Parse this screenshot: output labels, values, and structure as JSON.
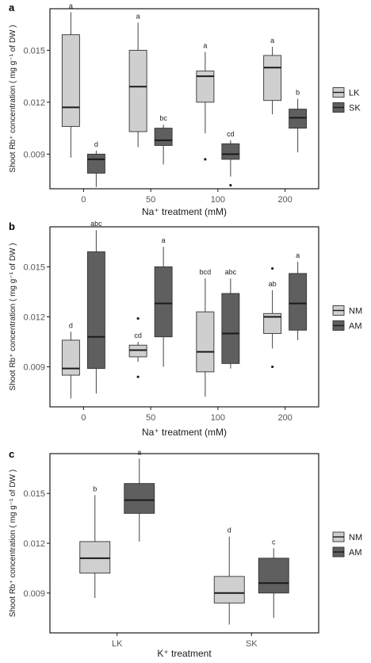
{
  "colors": {
    "light": "#cfcfcf",
    "dark": "#5f5f5f",
    "frame": "#1a1a1a",
    "median": "#1a1a1a",
    "whisker": "#444444"
  },
  "chart_data": [
    {
      "type": "box",
      "panel": "a",
      "xlabel": "Na⁺ treatment (mM)",
      "ylabel": "Shoot Rb⁺ concentration ( mg g⁻¹ of DW )",
      "ylim": [
        0.007,
        0.0174
      ],
      "yticks": [
        "0.009",
        "0.012",
        "0.015"
      ],
      "ytick_values": [
        0.009,
        0.012,
        0.015
      ],
      "categories": [
        "0",
        "50",
        "100",
        "200"
      ],
      "legend_position": "right",
      "series": [
        {
          "name": "LK",
          "color": "#cfcfcf",
          "boxes": [
            {
              "min": 0.0088,
              "q1": 0.0106,
              "median": 0.0117,
              "q3": 0.0159,
              "max": 0.0172,
              "label": "a",
              "outliers": []
            },
            {
              "min": 0.0094,
              "q1": 0.0103,
              "median": 0.0129,
              "q3": 0.015,
              "max": 0.0166,
              "label": "a",
              "outliers": []
            },
            {
              "min": 0.0102,
              "q1": 0.012,
              "median": 0.0135,
              "q3": 0.0138,
              "max": 0.0149,
              "label": "a",
              "outliers": [
                0.0087
              ]
            },
            {
              "min": 0.0113,
              "q1": 0.0121,
              "median": 0.014,
              "q3": 0.0147,
              "max": 0.0152,
              "label": "a",
              "outliers": []
            }
          ]
        },
        {
          "name": "SK",
          "color": "#5f5f5f",
          "boxes": [
            {
              "min": 0.0071,
              "q1": 0.0079,
              "median": 0.0087,
              "q3": 0.009,
              "max": 0.0092,
              "label": "d",
              "outliers": []
            },
            {
              "min": 0.0084,
              "q1": 0.0095,
              "median": 0.0098,
              "q3": 0.0105,
              "max": 0.0107,
              "label": "bc",
              "outliers": []
            },
            {
              "min": 0.0077,
              "q1": 0.0087,
              "median": 0.009,
              "q3": 0.0096,
              "max": 0.0098,
              "label": "cd",
              "outliers": [
                0.0072
              ]
            },
            {
              "min": 0.0091,
              "q1": 0.0105,
              "median": 0.0111,
              "q3": 0.0116,
              "max": 0.0122,
              "label": "b",
              "outliers": []
            }
          ]
        }
      ]
    },
    {
      "type": "box",
      "panel": "b",
      "xlabel": "Na⁺ treatment (mM)",
      "ylabel": "Shoot Rb⁺ concentration ( mg g⁻¹ of DW )",
      "ylim": [
        0.0066,
        0.0174
      ],
      "yticks": [
        "0.009",
        "0.012",
        "0.015"
      ],
      "ytick_values": [
        0.009,
        0.012,
        0.015
      ],
      "categories": [
        "0",
        "50",
        "100",
        "200"
      ],
      "legend_position": "right",
      "series": [
        {
          "name": "NM",
          "color": "#cfcfcf",
          "boxes": [
            {
              "min": 0.0071,
              "q1": 0.0085,
              "median": 0.0089,
              "q3": 0.0106,
              "max": 0.0111,
              "label": "d",
              "outliers": []
            },
            {
              "min": 0.0093,
              "q1": 0.0096,
              "median": 0.01,
              "q3": 0.0103,
              "max": 0.0105,
              "label": "cd",
              "outliers": [
                0.0119,
                0.0084
              ]
            },
            {
              "min": 0.0072,
              "q1": 0.0087,
              "median": 0.0099,
              "q3": 0.0123,
              "max": 0.0143,
              "label": "bcd",
              "outliers": []
            },
            {
              "min": 0.0101,
              "q1": 0.011,
              "median": 0.012,
              "q3": 0.0122,
              "max": 0.0136,
              "label": "ab",
              "outliers": [
                0.0149,
                0.009
              ]
            }
          ]
        },
        {
          "name": "AM",
          "color": "#5f5f5f",
          "boxes": [
            {
              "min": 0.0074,
              "q1": 0.0089,
              "median": 0.0108,
              "q3": 0.0159,
              "max": 0.0172,
              "label": "abc",
              "outliers": []
            },
            {
              "min": 0.009,
              "q1": 0.0108,
              "median": 0.0128,
              "q3": 0.015,
              "max": 0.0162,
              "label": "a",
              "outliers": []
            },
            {
              "min": 0.0089,
              "q1": 0.0092,
              "median": 0.011,
              "q3": 0.0134,
              "max": 0.0143,
              "label": "abc",
              "outliers": []
            },
            {
              "min": 0.0106,
              "q1": 0.0112,
              "median": 0.0128,
              "q3": 0.0146,
              "max": 0.0153,
              "label": "a",
              "outliers": []
            }
          ]
        }
      ]
    },
    {
      "type": "box",
      "panel": "c",
      "xlabel": "K⁺ treatment",
      "ylabel": "Shoot Rb⁺ concentration ( mg g⁻¹ of DW )",
      "ylim": [
        0.0066,
        0.0174
      ],
      "yticks": [
        "0.009",
        "0.012",
        "0.015"
      ],
      "ytick_values": [
        0.009,
        0.012,
        0.015
      ],
      "categories": [
        "LK",
        "SK"
      ],
      "legend_position": "right",
      "series": [
        {
          "name": "NM",
          "color": "#cfcfcf",
          "boxes": [
            {
              "min": 0.0087,
              "q1": 0.0102,
              "median": 0.0111,
              "q3": 0.0121,
              "max": 0.0149,
              "label": "b",
              "outliers": []
            },
            {
              "min": 0.0071,
              "q1": 0.0084,
              "median": 0.009,
              "q3": 0.01,
              "max": 0.0124,
              "label": "d",
              "outliers": []
            }
          ]
        },
        {
          "name": "AM",
          "color": "#5f5f5f",
          "boxes": [
            {
              "min": 0.0121,
              "q1": 0.0138,
              "median": 0.0146,
              "q3": 0.0156,
              "max": 0.0171,
              "label": "a",
              "outliers": []
            },
            {
              "min": 0.0075,
              "q1": 0.009,
              "median": 0.0096,
              "q3": 0.0111,
              "max": 0.0117,
              "label": "c",
              "outliers": []
            }
          ]
        }
      ]
    }
  ]
}
